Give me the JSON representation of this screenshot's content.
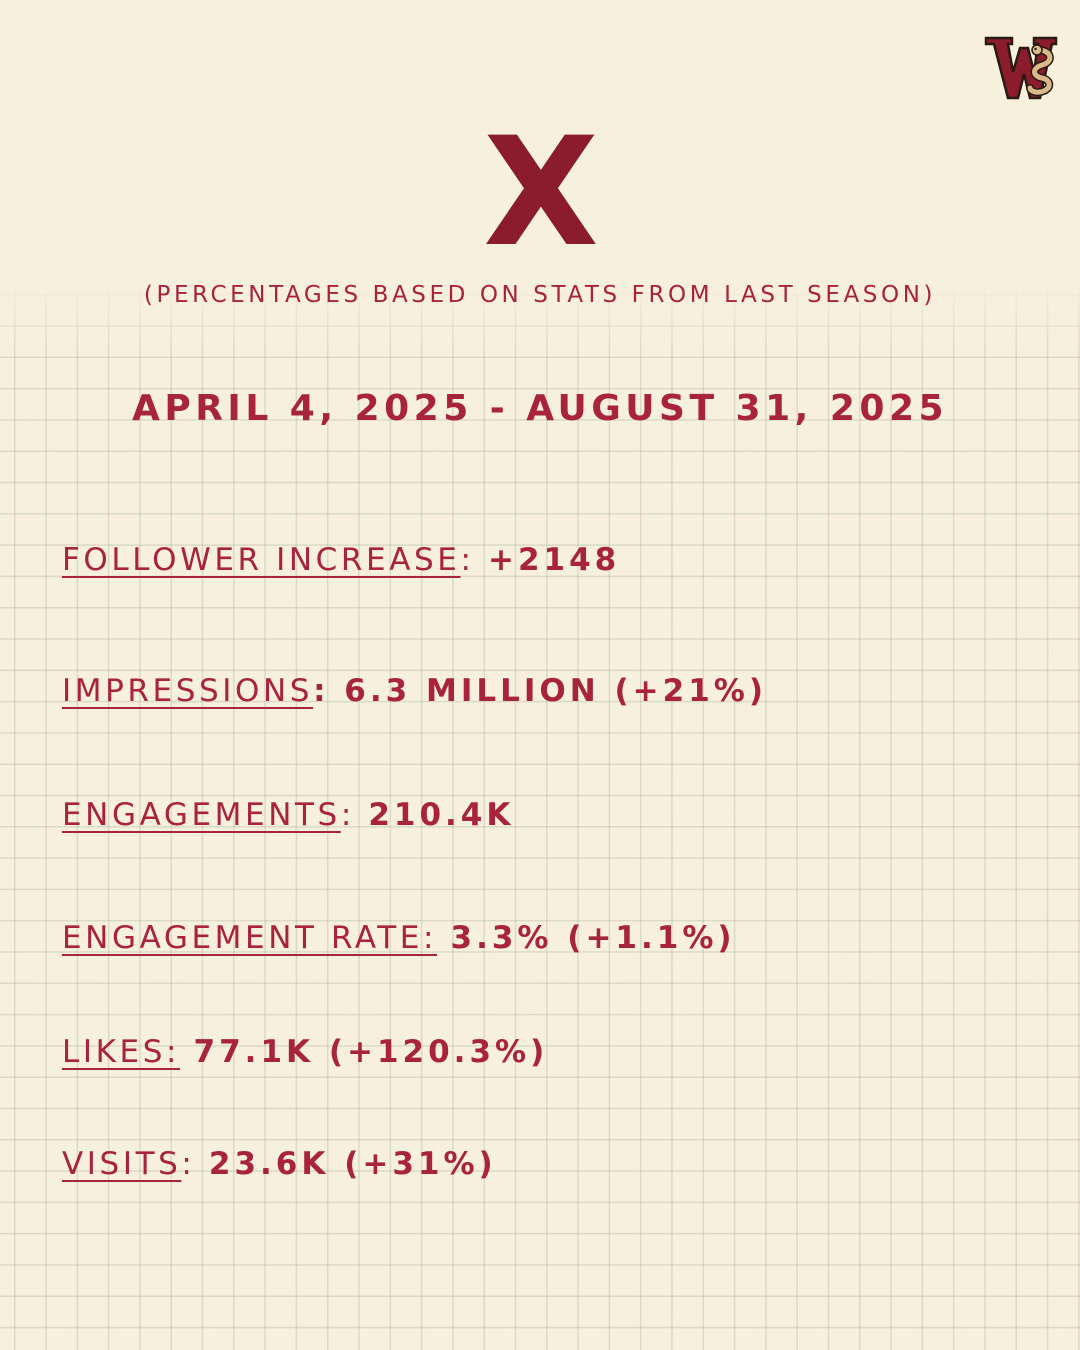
{
  "colors": {
    "background": "#f6f0dc",
    "accent": "#a8243a",
    "dark_accent": "#8b1c2c"
  },
  "logo": {
    "icon": "team-w-snake-logo-icon"
  },
  "header": {
    "platform": "X",
    "subtitle": "(PERCENTAGES BASED ON STATS FROM LAST SEASON)",
    "date_range": "APRIL 4, 2025 - AUGUST 31, 2025"
  },
  "stats": [
    {
      "label": "FOLLOWER INCREASE",
      "sep": ": ",
      "value": "+2148"
    },
    {
      "label": "IMPRESSIONS",
      "sep": ": ",
      "value": "6.3 MILLION (+21%)"
    },
    {
      "label": "ENGAGEMENTS",
      "sep": ": ",
      "value": "210.4K"
    },
    {
      "label": "ENGAGEMENT RATE:",
      "sep": " ",
      "value": "3.3% (+1.1%)"
    },
    {
      "label": "LIKES:",
      "sep": " ",
      "value": "77.1K (+120.3%)"
    },
    {
      "label": "VISITS",
      "sep": ": ",
      "value": "23.6K (+31%)"
    }
  ]
}
